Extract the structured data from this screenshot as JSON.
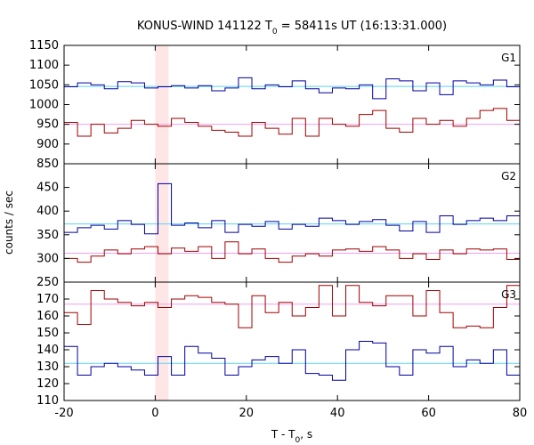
{
  "chart_data": {
    "type": "line",
    "title": "KONUS-WIND 141122 T",
    "title_sub": "0",
    "title_rest": " = 58411s UT (16:13:31.000)",
    "xlabel": "T - T",
    "xlabel_sub": "0",
    "xlabel_rest": ", s",
    "ylabel": "counts / sec",
    "xlim": [
      -20,
      80
    ],
    "x_ticks": [
      -20,
      0,
      20,
      40,
      60,
      80
    ],
    "highlight_interval": [
      0,
      2.944
    ],
    "colors": {
      "blue": "#0000a0",
      "red": "#a00000",
      "fit_blue": "#5ad2ee",
      "fit_pink": "#f0a0ee",
      "highlight": "#ffe6e6"
    },
    "bin_edges": [
      -20,
      -17.056,
      -14.112,
      -11.168,
      -8.224,
      -5.28,
      -2.336,
      0.608,
      3.552,
      6.496,
      9.44,
      12.384,
      15.328,
      18.272,
      21.216,
      24.16,
      27.104,
      30.048,
      32.992,
      35.936,
      38.88,
      41.824,
      44.768,
      47.712,
      50.656,
      53.6,
      56.544,
      59.488,
      62.432,
      65.376,
      68.32,
      71.264,
      74.208,
      77.152,
      80
    ],
    "panels": [
      {
        "label": "G1",
        "ylim": [
          850,
          1150
        ],
        "y_ticks": [
          850,
          900,
          950,
          1000,
          1050,
          1100,
          1150
        ],
        "series": [
          {
            "color": "blue",
            "values": [
              1045,
              1055,
              1050,
              1040,
              1058,
              1055,
              1042,
              1045,
              1048,
              1042,
              1048,
              1035,
              1042,
              1068,
              1040,
              1050,
              1045,
              1060,
              1040,
              1030,
              1042,
              1040,
              1050,
              1015,
              1065,
              1060,
              1035,
              1055,
              1025,
              1060,
              1055,
              1050,
              1062,
              1045
            ]
          },
          {
            "color": "red",
            "values": [
              955,
              920,
              950,
              928,
              940,
              960,
              950,
              945,
              965,
              955,
              945,
              935,
              930,
              920,
              955,
              940,
              925,
              965,
              920,
              965,
              950,
              945,
              975,
              985,
              940,
              930,
              965,
              950,
              960,
              945,
              965,
              985,
              990,
              960
            ]
          }
        ],
        "fits": [
          {
            "color": "fit_blue",
            "value": 1046
          },
          {
            "color": "fit_pink",
            "value": 950
          }
        ]
      },
      {
        "label": "G2",
        "ylim": [
          250,
          500
        ],
        "y_ticks": [
          250,
          300,
          350,
          400,
          450
        ],
        "series": [
          {
            "color": "blue",
            "values": [
              355,
              365,
              370,
              362,
              380,
              372,
              352,
              458,
              370,
              375,
              365,
              380,
              355,
              372,
              368,
              378,
              362,
              372,
              368,
              385,
              380,
              372,
              378,
              382,
              370,
              358,
              378,
              355,
              390,
              372,
              380,
              385,
              380,
              390
            ]
          },
          {
            "color": "red",
            "values": [
              300,
              292,
              305,
              318,
              310,
              320,
              325,
              310,
              322,
              315,
              325,
              300,
              335,
              310,
              320,
              300,
              292,
              305,
              310,
              305,
              318,
              320,
              315,
              325,
              318,
              300,
              310,
              298,
              318,
              310,
              320,
              318,
              320,
              298
            ]
          }
        ],
        "fits": [
          {
            "color": "fit_blue",
            "value": 373
          },
          {
            "color": "fit_pink",
            "value": 311
          }
        ]
      },
      {
        "label": "G3",
        "ylim": [
          110,
          180
        ],
        "y_ticks": [
          110,
          120,
          130,
          140,
          150,
          160,
          170
        ],
        "series": [
          {
            "color": "red",
            "values": [
              162,
              155,
              175,
              170,
              168,
              166,
              168,
              165,
              170,
              172,
              171,
              168,
              167,
              153,
              172,
              162,
              168,
              160,
              165,
              178,
              160,
              178,
              168,
              166,
              172,
              172,
              160,
              175,
              162,
              153,
              154,
              153,
              165,
              178
            ]
          },
          {
            "color": "blue",
            "values": [
              142,
              125,
              130,
              132,
              130,
              128,
              125,
              136,
              125,
              142,
              138,
              135,
              125,
              130,
              134,
              136,
              132,
              140,
              126,
              125,
              122,
              140,
              145,
              144,
              130,
              125,
              140,
              138,
              142,
              130,
              134,
              132,
              140,
              125
            ]
          }
        ],
        "fits": [
          {
            "color": "fit_blue",
            "value": 132
          },
          {
            "color": "fit_pink",
            "value": 167
          }
        ]
      }
    ]
  }
}
